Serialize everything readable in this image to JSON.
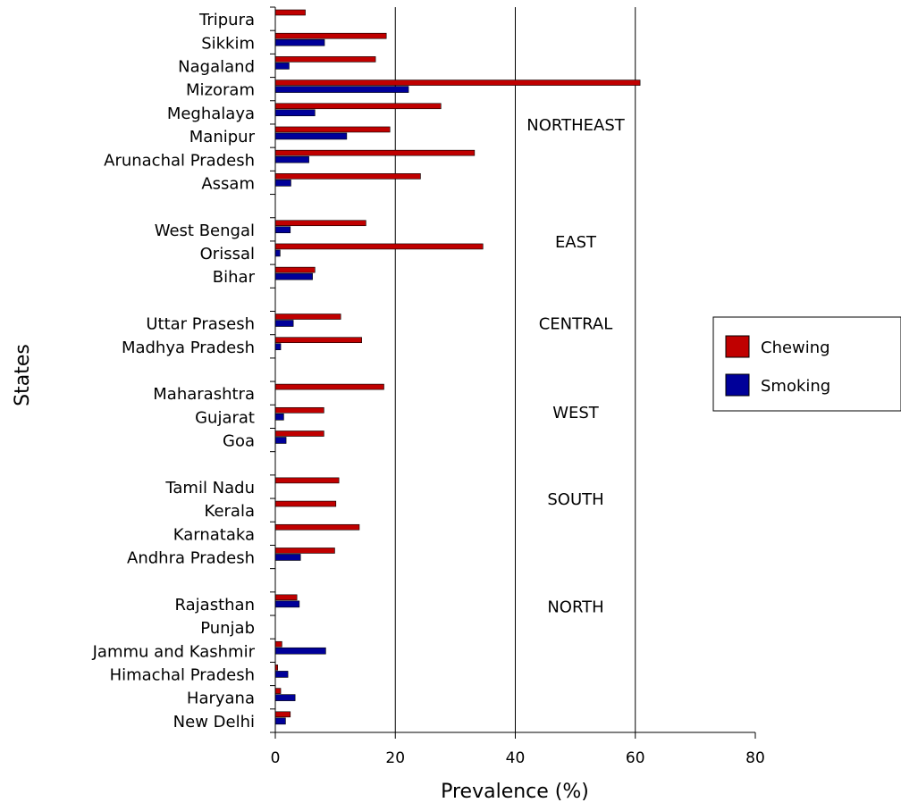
{
  "chart_data": {
    "type": "bar",
    "orientation": "horizontal",
    "xlabel": "Prevalence (%)",
    "ylabel": "States",
    "xlim": [
      0,
      80
    ],
    "xticks": [
      "0",
      "20",
      "40",
      "60",
      "80"
    ],
    "gridlines_x": [
      20,
      40,
      60
    ],
    "legend": {
      "placement": "right",
      "entries": [
        {
          "name": "Chewing",
          "color": "#c00000"
        },
        {
          "name": "Smoking",
          "color": "#000099"
        }
      ]
    },
    "series": [
      {
        "name": "Chewing",
        "color": "#c00000"
      },
      {
        "name": "Smoking",
        "color": "#000099"
      }
    ],
    "rows": [
      {
        "label": "Tripura",
        "chewing": 5.0,
        "smoking": 0
      },
      {
        "label": "Sikkim",
        "chewing": 18.5,
        "smoking": 8.2
      },
      {
        "label": "Nagaland",
        "chewing": 16.7,
        "smoking": 2.3
      },
      {
        "label": "Mizoram",
        "chewing": 60.8,
        "smoking": 22.2
      },
      {
        "label": "Meghalaya",
        "chewing": 27.6,
        "smoking": 6.6
      },
      {
        "label": "Manipur",
        "chewing": 19.1,
        "smoking": 11.9
      },
      {
        "label": "Arunachal Pradesh",
        "chewing": 33.2,
        "smoking": 5.6
      },
      {
        "label": "Assam",
        "chewing": 24.2,
        "smoking": 2.6
      },
      {
        "label": "",
        "chewing": null,
        "smoking": null
      },
      {
        "label": "West Bengal",
        "chewing": 15.1,
        "smoking": 2.5
      },
      {
        "label": "Orissal",
        "chewing": 34.6,
        "smoking": 0.8
      },
      {
        "label": "Bihar",
        "chewing": 6.6,
        "smoking": 6.2
      },
      {
        "label": "",
        "chewing": null,
        "smoking": null
      },
      {
        "label": "Uttar Prasesh",
        "chewing": 10.9,
        "smoking": 3.0
      },
      {
        "label": "Madhya Pradesh",
        "chewing": 14.4,
        "smoking": 0.9
      },
      {
        "label": "",
        "chewing": null,
        "smoking": null
      },
      {
        "label": "Maharashtra",
        "chewing": 18.1,
        "smoking": 0
      },
      {
        "label": "Gujarat",
        "chewing": 8.1,
        "smoking": 1.4
      },
      {
        "label": "Goa",
        "chewing": 8.1,
        "smoking": 1.8
      },
      {
        "label": "",
        "chewing": null,
        "smoking": null
      },
      {
        "label": "Tamil Nadu",
        "chewing": 10.6,
        "smoking": 0
      },
      {
        "label": "Kerala",
        "chewing": 10.1,
        "smoking": 0
      },
      {
        "label": "Karnataka",
        "chewing": 14.0,
        "smoking": 0
      },
      {
        "label": "Andhra Pradesh",
        "chewing": 9.9,
        "smoking": 4.2
      },
      {
        "label": "",
        "chewing": null,
        "smoking": null
      },
      {
        "label": "Rajasthan",
        "chewing": 3.6,
        "smoking": 4.0
      },
      {
        "label": "Punjab",
        "chewing": 0,
        "smoking": 0
      },
      {
        "label": "Jammu and Kashmir",
        "chewing": 1.1,
        "smoking": 8.4
      },
      {
        "label": "Himachal Pradesh",
        "chewing": 0.4,
        "smoking": 2.1
      },
      {
        "label": "Haryana",
        "chewing": 0.9,
        "smoking": 3.3
      },
      {
        "label": "New Delhi",
        "chewing": 2.5,
        "smoking": 1.7
      }
    ],
    "regions": [
      {
        "label": "NORTHEAST",
        "row": 5
      },
      {
        "label": "EAST",
        "row": 10
      },
      {
        "label": "CENTRAL",
        "row": 13.5
      },
      {
        "label": "WEST",
        "row": 17.3
      },
      {
        "label": "SOUTH",
        "row": 21
      },
      {
        "label": "NORTH",
        "row": 25.6
      }
    ]
  }
}
